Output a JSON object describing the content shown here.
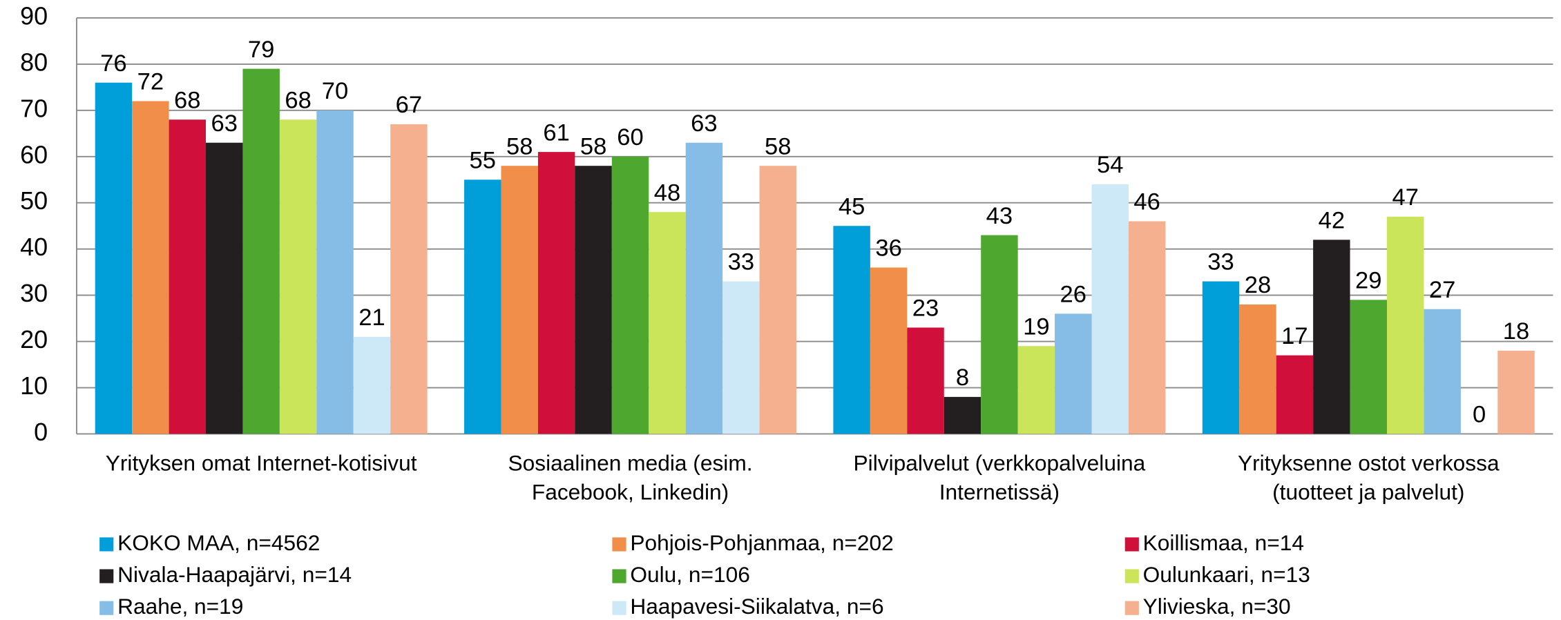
{
  "chart_data": {
    "type": "bar",
    "categories": [
      [
        "Yrityksen omat Internet-kotisivut"
      ],
      [
        "Sosiaalinen media (esim.",
        "Facebook, Linkedin)"
      ],
      [
        "Pilvipalvelut  (verkkopalveluina",
        "Internetissä)"
      ],
      [
        "Yrityksenne ostot verkossa",
        "(tuotteet ja palvelut)"
      ]
    ],
    "series": [
      {
        "name": "KOKO MAA, n=4562",
        "color": "#009fda",
        "values": [
          76,
          55,
          45,
          33
        ]
      },
      {
        "name": "Pohjois-Pohjanmaa, n=202",
        "color": "#f18f4a",
        "values": [
          72,
          58,
          36,
          28
        ]
      },
      {
        "name": "Koillismaa, n=14",
        "color": "#d0103a",
        "values": [
          68,
          61,
          23,
          17
        ]
      },
      {
        "name": "Nivala-Haapajärvi, n=14",
        "color": "#231f20",
        "values": [
          63,
          58,
          8,
          42
        ]
      },
      {
        "name": "Oulu, n=106",
        "color": "#4ea72e",
        "values": [
          79,
          60,
          43,
          29
        ]
      },
      {
        "name": "Oulunkaari, n=13",
        "color": "#cbe55a",
        "values": [
          68,
          48,
          19,
          47
        ]
      },
      {
        "name": "Raahe, n=19",
        "color": "#86bde6",
        "values": [
          70,
          63,
          26,
          27
        ]
      },
      {
        "name": "Haapavesi-Siikalatva, n=6",
        "color": "#cde9f7",
        "values": [
          21,
          33,
          54,
          0
        ]
      },
      {
        "name": "Ylivieska, n=30",
        "color": "#f4b08f",
        "values": [
          67,
          58,
          46,
          18
        ]
      }
    ],
    "ylim": [
      0,
      90
    ],
    "yticks": [
      0,
      10,
      20,
      30,
      40,
      50,
      60,
      70,
      80,
      90
    ],
    "grid": true
  }
}
